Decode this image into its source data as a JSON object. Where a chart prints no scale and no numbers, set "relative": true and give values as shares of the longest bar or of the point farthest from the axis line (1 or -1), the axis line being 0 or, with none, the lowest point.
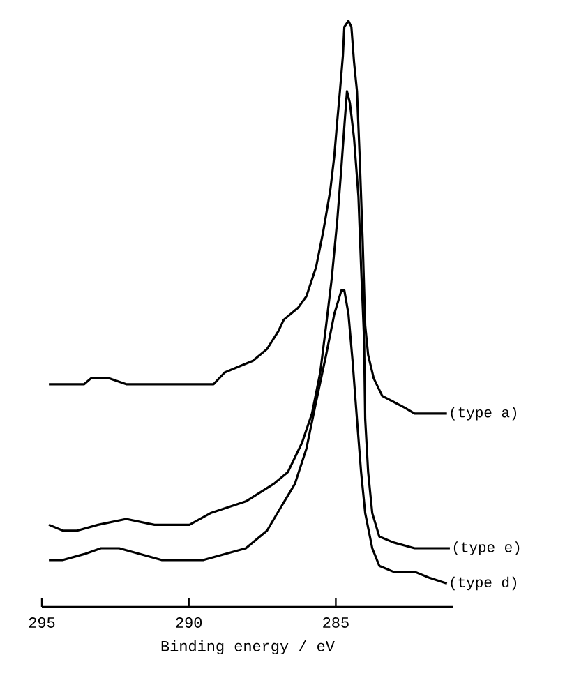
{
  "chart_data": {
    "type": "line",
    "relative": true,
    "xlabel": "Binding energy / eV",
    "xlim": [
      295,
      281
    ],
    "xticks": [
      295,
      290,
      285
    ],
    "tick_labels": "x",
    "line_style": "solid",
    "series": [
      {
        "name": "(type a)",
        "color": "#000000",
        "x": [
          294.76,
          294.28,
          293.56,
          293.33,
          292.7,
          292.13,
          291.65,
          290.93,
          289.74,
          289.16,
          288.78,
          288.3,
          287.82,
          287.34,
          286.96,
          286.77,
          286.29,
          286.0,
          285.67,
          285.43,
          285.19,
          285.05,
          284.95,
          284.86,
          284.76,
          284.71,
          284.57,
          284.47,
          284.38,
          284.28,
          284.19,
          284.09,
          284.0,
          283.9,
          283.71,
          283.42,
          283.04,
          282.66,
          282.32,
          281.84,
          281.22
        ],
        "values": [
          0.38,
          0.38,
          0.38,
          0.39,
          0.39,
          0.38,
          0.38,
          0.38,
          0.38,
          0.38,
          0.4,
          0.41,
          0.42,
          0.44,
          0.47,
          0.49,
          0.51,
          0.53,
          0.58,
          0.64,
          0.71,
          0.77,
          0.83,
          0.88,
          0.94,
          0.99,
          1.0,
          0.99,
          0.93,
          0.88,
          0.77,
          0.63,
          0.48,
          0.43,
          0.39,
          0.36,
          0.35,
          0.34,
          0.33,
          0.33,
          0.33
        ]
      },
      {
        "name": "(type e)",
        "color": "#000000",
        "x": [
          294.76,
          294.28,
          293.8,
          293.09,
          292.13,
          291.17,
          289.98,
          289.26,
          288.06,
          287.11,
          286.63,
          286.15,
          285.81,
          285.53,
          285.33,
          285.14,
          284.95,
          284.81,
          284.71,
          284.62,
          284.52,
          284.38,
          284.23,
          284.14,
          284.04,
          284.0,
          283.9,
          283.76,
          283.52,
          283.04,
          282.32,
          281.6,
          281.12
        ],
        "values": [
          0.14,
          0.13,
          0.13,
          0.14,
          0.15,
          0.14,
          0.14,
          0.16,
          0.18,
          0.21,
          0.23,
          0.28,
          0.33,
          0.4,
          0.48,
          0.56,
          0.66,
          0.75,
          0.82,
          0.88,
          0.86,
          0.8,
          0.7,
          0.58,
          0.46,
          0.32,
          0.23,
          0.16,
          0.12,
          0.11,
          0.1,
          0.1,
          0.1
        ]
      },
      {
        "name": "(type d)",
        "color": "#000000",
        "x": [
          294.76,
          294.28,
          293.56,
          292.99,
          292.37,
          291.65,
          290.93,
          289.98,
          289.5,
          288.78,
          288.06,
          287.34,
          286.87,
          286.39,
          286.0,
          285.67,
          285.33,
          285.05,
          284.81,
          284.71,
          284.57,
          284.43,
          284.28,
          284.14,
          284.0,
          283.76,
          283.52,
          283.04,
          282.32,
          281.84,
          281.22
        ],
        "values": [
          0.08,
          0.08,
          0.09,
          0.1,
          0.1,
          0.09,
          0.08,
          0.08,
          0.08,
          0.09,
          0.1,
          0.13,
          0.17,
          0.21,
          0.27,
          0.35,
          0.43,
          0.5,
          0.54,
          0.54,
          0.5,
          0.42,
          0.32,
          0.23,
          0.16,
          0.1,
          0.07,
          0.06,
          0.06,
          0.05,
          0.04
        ]
      }
    ]
  }
}
